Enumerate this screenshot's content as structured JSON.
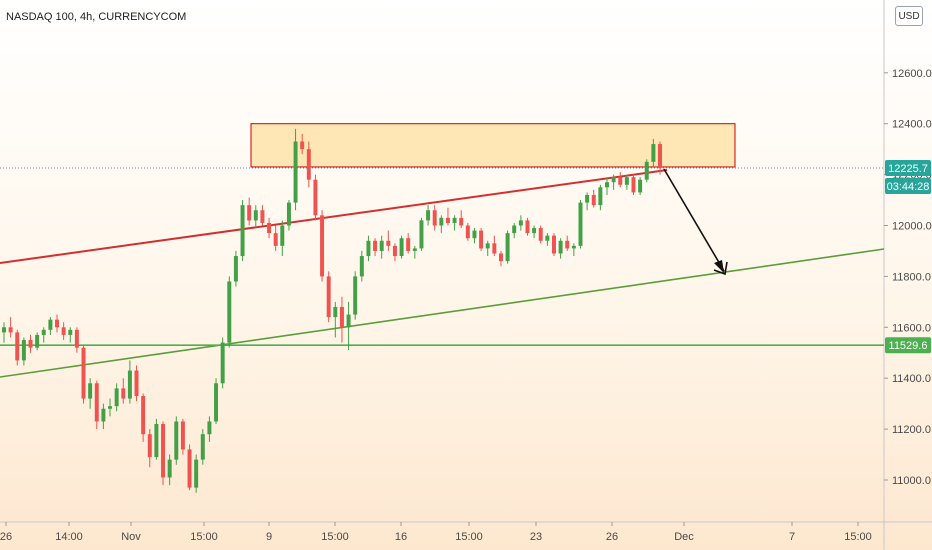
{
  "chart_data": {
    "type": "candlestick",
    "title": "NASDAQ 100, 4h, CURRENCYCOM",
    "currency": "USD",
    "y_axis": {
      "min": 10850,
      "max": 12800,
      "ticks": [
        11000,
        11200,
        11400,
        11600,
        11800,
        12000,
        12200,
        12400,
        12600
      ],
      "tick_labels": [
        "11000.0",
        "11200.0",
        "11400.0",
        "11600.0",
        "11800.0",
        "12000.0",
        "12200.0",
        "12400.0",
        "12600.0"
      ],
      "position": "right"
    },
    "x_axis": {
      "tick_labels": [
        "26",
        "14:00",
        "Nov",
        "15:00",
        "9",
        "15:00",
        "16",
        "15:00",
        "23",
        "26",
        "Dec",
        "7",
        "15:00"
      ]
    },
    "price_tags": [
      {
        "label": "12225.7",
        "value": 12225.7,
        "color": "#26a69a"
      },
      {
        "label": "03:44:28",
        "value": 12150,
        "color": "#26a69a"
      },
      {
        "label": "11529.6",
        "value": 11529.6,
        "color": "#4caf50"
      }
    ],
    "candles": [
      [
        11580,
        11620,
        11540,
        11600
      ],
      [
        11600,
        11640,
        11560,
        11580
      ],
      [
        11580,
        11590,
        11450,
        11470
      ],
      [
        11470,
        11560,
        11450,
        11550
      ],
      [
        11550,
        11570,
        11500,
        11520
      ],
      [
        11520,
        11580,
        11510,
        11570
      ],
      [
        11570,
        11600,
        11540,
        11590
      ],
      [
        11590,
        11640,
        11570,
        11630
      ],
      [
        11630,
        11650,
        11580,
        11600
      ],
      [
        11600,
        11620,
        11550,
        11570
      ],
      [
        11570,
        11600,
        11540,
        11590
      ],
      [
        11590,
        11600,
        11500,
        11520
      ],
      [
        11520,
        11530,
        11300,
        11320
      ],
      [
        11320,
        11400,
        11280,
        11380
      ],
      [
        11380,
        11390,
        11200,
        11230
      ],
      [
        11230,
        11300,
        11200,
        11280
      ],
      [
        11280,
        11320,
        11250,
        11290
      ],
      [
        11290,
        11380,
        11270,
        11360
      ],
      [
        11360,
        11400,
        11300,
        11320
      ],
      [
        11320,
        11470,
        11300,
        11430
      ],
      [
        11430,
        11450,
        11310,
        11330
      ],
      [
        11330,
        11340,
        11150,
        11180
      ],
      [
        11180,
        11200,
        11050,
        11090
      ],
      [
        11090,
        11240,
        11080,
        11220
      ],
      [
        11220,
        11230,
        10980,
        11010
      ],
      [
        11010,
        11100,
        10980,
        11080
      ],
      [
        11080,
        11250,
        11060,
        11230
      ],
      [
        11230,
        11240,
        11100,
        11120
      ],
      [
        11120,
        11140,
        10960,
        10970
      ],
      [
        10970,
        11100,
        10950,
        11080
      ],
      [
        11080,
        11200,
        11060,
        11180
      ],
      [
        11180,
        11250,
        11150,
        11230
      ],
      [
        11230,
        11400,
        11220,
        11380
      ],
      [
        11380,
        11560,
        11360,
        11540
      ],
      [
        11540,
        11800,
        11520,
        11780
      ],
      [
        11780,
        11900,
        11760,
        11880
      ],
      [
        11880,
        12100,
        11860,
        12080
      ],
      [
        12080,
        12110,
        12000,
        12020
      ],
      [
        12020,
        12080,
        11990,
        12060
      ],
      [
        12060,
        12080,
        12000,
        12010
      ],
      [
        12010,
        12030,
        11950,
        11970
      ],
      [
        11970,
        12000,
        11900,
        11920
      ],
      [
        11920,
        12020,
        11880,
        12000
      ],
      [
        12000,
        12100,
        11980,
        12090
      ],
      [
        12090,
        12380,
        12060,
        12330
      ],
      [
        12330,
        12360,
        12280,
        12300
      ],
      [
        12300,
        12330,
        12150,
        12180
      ],
      [
        12180,
        12200,
        12020,
        12040
      ],
      [
        12040,
        12060,
        11780,
        11800
      ],
      [
        11800,
        11820,
        11620,
        11640
      ],
      [
        11640,
        11700,
        11560,
        11680
      ],
      [
        11680,
        11720,
        11540,
        11600
      ],
      [
        11600,
        11700,
        11510,
        11650
      ],
      [
        11650,
        11820,
        11630,
        11800
      ],
      [
        11800,
        11900,
        11780,
        11880
      ],
      [
        11880,
        11960,
        11860,
        11940
      ],
      [
        11940,
        11950,
        11880,
        11900
      ],
      [
        11900,
        11960,
        11870,
        11940
      ],
      [
        11940,
        11980,
        11900,
        11920
      ],
      [
        11920,
        11930,
        11860,
        11880
      ],
      [
        11880,
        11960,
        11870,
        11950
      ],
      [
        11950,
        11970,
        11890,
        11900
      ],
      [
        11900,
        11920,
        11870,
        11910
      ],
      [
        11910,
        12030,
        11900,
        12020
      ],
      [
        12020,
        12080,
        12000,
        12060
      ],
      [
        12060,
        12080,
        11980,
        12000
      ],
      [
        12000,
        12040,
        11970,
        12030
      ],
      [
        12030,
        12070,
        12000,
        12010
      ],
      [
        12010,
        12040,
        11980,
        12030
      ],
      [
        12030,
        12060,
        11990,
        12000
      ],
      [
        12000,
        12010,
        11940,
        11950
      ],
      [
        11950,
        11990,
        11930,
        11980
      ],
      [
        11980,
        11990,
        11900,
        11910
      ],
      [
        11910,
        11940,
        11880,
        11930
      ],
      [
        11930,
        11960,
        11880,
        11890
      ],
      [
        11890,
        11900,
        11840,
        11860
      ],
      [
        11860,
        11980,
        11850,
        11970
      ],
      [
        11970,
        12010,
        11950,
        12000
      ],
      [
        12000,
        12040,
        11980,
        12020
      ],
      [
        12020,
        12030,
        11960,
        11970
      ],
      [
        11970,
        12000,
        11950,
        11990
      ],
      [
        11990,
        12000,
        11930,
        11940
      ],
      [
        11940,
        11970,
        11920,
        11960
      ],
      [
        11960,
        11970,
        11880,
        11890
      ],
      [
        11890,
        11950,
        11870,
        11940
      ],
      [
        11940,
        11960,
        11900,
        11910
      ],
      [
        11910,
        11930,
        11880,
        11920
      ],
      [
        11920,
        12100,
        11910,
        12090
      ],
      [
        12090,
        12130,
        12060,
        12120
      ],
      [
        12120,
        12140,
        12070,
        12080
      ],
      [
        12080,
        12160,
        12060,
        12150
      ],
      [
        12150,
        12190,
        12120,
        12170
      ],
      [
        12170,
        12200,
        12140,
        12190
      ],
      [
        12190,
        12210,
        12150,
        12160
      ],
      [
        12160,
        12200,
        12140,
        12190
      ],
      [
        12190,
        12200,
        12120,
        12130
      ],
      [
        12130,
        12190,
        12120,
        12180
      ],
      [
        12180,
        12260,
        12170,
        12250
      ],
      [
        12250,
        12340,
        12230,
        12320
      ],
      [
        12320,
        12330,
        12200,
        12225.7
      ]
    ],
    "annotations": [
      {
        "type": "rectangle",
        "label": "resistance zone",
        "y_low": 12230,
        "y_high": 12400,
        "stroke": "#cc0000",
        "fill": "#ffd98a"
      },
      {
        "type": "trendline",
        "label": "red trendline",
        "color": "#d32f2f"
      },
      {
        "type": "trendline",
        "label": "green trendline",
        "color": "#5a9e3a"
      },
      {
        "type": "horizontal_line",
        "value": 11529.6,
        "color": "#4caf50"
      },
      {
        "type": "arrow",
        "label": "down arrow",
        "color": "#111111"
      }
    ],
    "colors": {
      "up": "#43a047",
      "down": "#ef5350"
    }
  }
}
